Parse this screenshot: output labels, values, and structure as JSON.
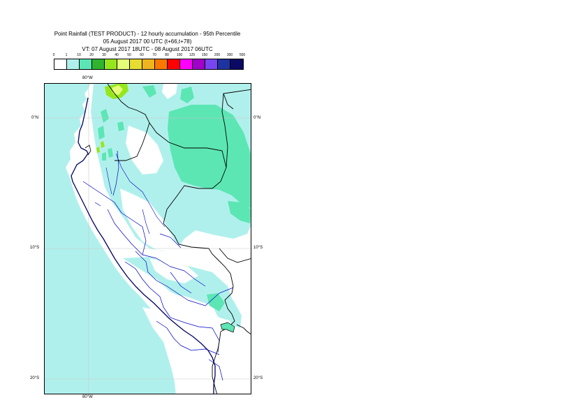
{
  "title": {
    "line1": "Point Rainfall (TEST PRODUCT) - 12 hourly accumulation - 95th Percentile",
    "line2": "05 August 2017 00 UTC (t+66,t+78)",
    "line3": "VT: 07 August 2017 18UTC - 08 August 2017 06UTC"
  },
  "legend": {
    "labels": [
      "0",
      "1",
      "10",
      "20",
      "30",
      "40",
      "50",
      "60",
      "70",
      "80",
      "100",
      "125",
      "150",
      "200",
      "300",
      "500"
    ],
    "colors": [
      "#ffffff",
      "#b0f0ec",
      "#5ce6b4",
      "#30b430",
      "#96e61e",
      "#e6ff78",
      "#e6dc32",
      "#f0b41e",
      "#fa7800",
      "#ff0000",
      "#ff00ff",
      "#a000c8",
      "#7846f0",
      "#1e32a0",
      "#0a0a64"
    ]
  },
  "map": {
    "lon_labels": {
      "top": "80°W",
      "bottom": "80°W"
    },
    "lat_labels": {
      "north": "0°N",
      "mid": "10°S",
      "south": "20°S"
    },
    "colors": {
      "light": "#b0f0ec",
      "medium": "#5ce6b4",
      "green": "#96e61e",
      "yellow": "#e6ff78",
      "border": "#000000",
      "admin": "#0000c8",
      "coast": "#000064",
      "grid": "#c8c8c8"
    }
  }
}
